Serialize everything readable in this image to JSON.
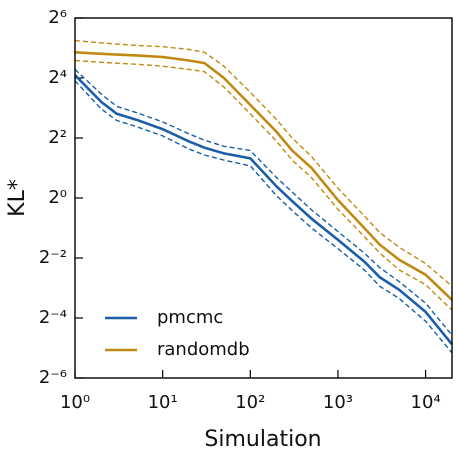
{
  "chart_data": {
    "type": "line",
    "xlabel": "Simulation",
    "ylabel": "KL*",
    "xscale": "log",
    "yscale": "log2",
    "xlim": [
      1,
      20000
    ],
    "ylim": [
      0.015625,
      64
    ],
    "xticks": [
      {
        "value": 1,
        "label": "10⁰"
      },
      {
        "value": 10,
        "label": "10¹"
      },
      {
        "value": 100,
        "label": "10²"
      },
      {
        "value": 1000,
        "label": "10³"
      },
      {
        "value": 10000,
        "label": "10⁴"
      }
    ],
    "yticks": [
      {
        "value": 0.015625,
        "label": "2⁻⁶"
      },
      {
        "value": 0.0625,
        "label": "2⁻⁴"
      },
      {
        "value": 0.25,
        "label": "2⁻²"
      },
      {
        "value": 1,
        "label": "2⁰"
      },
      {
        "value": 4,
        "label": "2²"
      },
      {
        "value": 16,
        "label": "2⁴"
      },
      {
        "value": 64,
        "label": "2⁶"
      }
    ],
    "legend": "lower left",
    "x": [
      1,
      2,
      3,
      5,
      10,
      20,
      30,
      50,
      100,
      200,
      300,
      500,
      1000,
      2000,
      3000,
      5000,
      10000,
      20000
    ],
    "series": [
      {
        "name": "pmcmc",
        "color": "#1a5ea8",
        "values": [
          17.1,
          9.2,
          7.0,
          6.1,
          4.9,
          3.7,
          3.2,
          2.8,
          2.5,
          1.3,
          0.93,
          0.62,
          0.38,
          0.23,
          0.16,
          0.12,
          0.072,
          0.034
        ],
        "upper": [
          19.5,
          11,
          8.3,
          7.2,
          5.8,
          4.4,
          3.8,
          3.3,
          3.0,
          1.6,
          1.15,
          0.76,
          0.46,
          0.28,
          0.2,
          0.145,
          0.088,
          0.042
        ],
        "lower": [
          15,
          7.8,
          6.0,
          5.2,
          4.2,
          3.1,
          2.7,
          2.4,
          2.1,
          1.05,
          0.75,
          0.5,
          0.31,
          0.19,
          0.13,
          0.098,
          0.058,
          0.028
        ]
      },
      {
        "name": "randomdb",
        "color": "#c08a12",
        "values": [
          29,
          28,
          27.5,
          27,
          26,
          24,
          22.6,
          16,
          8.6,
          4.6,
          3.0,
          2.0,
          0.95,
          0.5,
          0.34,
          0.24,
          0.17,
          0.095
        ],
        "upper": [
          38,
          36,
          35,
          34,
          33,
          31,
          29,
          21,
          11.5,
          6.1,
          4.0,
          2.6,
          1.25,
          0.66,
          0.45,
          0.32,
          0.22,
          0.13
        ],
        "lower": [
          24,
          23,
          22.5,
          22,
          21,
          19.5,
          18.5,
          13,
          7.0,
          3.7,
          2.4,
          1.6,
          0.77,
          0.41,
          0.28,
          0.19,
          0.135,
          0.075
        ]
      }
    ]
  }
}
